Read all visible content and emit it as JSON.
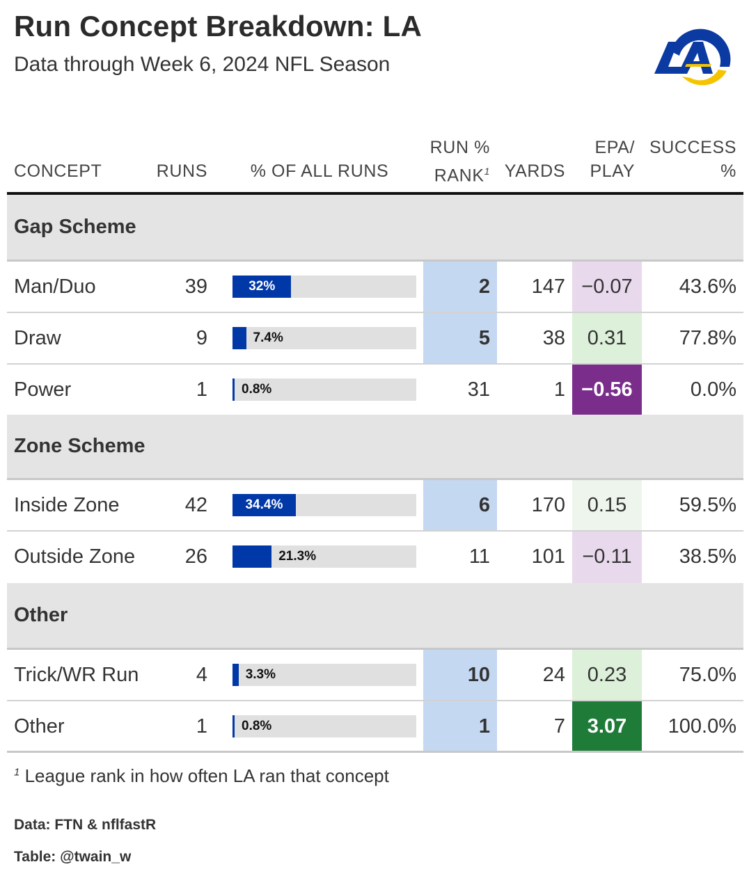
{
  "title": "Run Concept Breakdown: LA",
  "subtitle": "Data through Week 6, 2024 NFL Season",
  "logo": {
    "text": "LA",
    "colors": {
      "blue": "#0b3aa2",
      "gold": "#f5c400"
    }
  },
  "headers": {
    "concept": "CONCEPT",
    "runs": "RUNS",
    "pct": "% OF ALL RUNS",
    "rank_line1": "RUN %",
    "rank_line2": "RANK",
    "rank_note": "1",
    "yards": "YARDS",
    "epa_line1": "EPA/",
    "epa_line2": "PLAY",
    "success_line1": "SUCCESS",
    "success_line2": "%"
  },
  "colors": {
    "bar": "#0038a8",
    "track": "#e0e0e0",
    "rank_highlight": "#c5d8f1",
    "epa_neg_light": "#e8d9ec",
    "epa_neg_strong": "#7b2d8c",
    "epa_pos_light": "#dcf0da",
    "epa_pos_faint": "#eef5ec",
    "epa_pos_strong": "#1e7b38"
  },
  "chart_data": {
    "type": "table",
    "groups": [
      {
        "name": "Gap Scheme",
        "rows": [
          {
            "concept": "Man/Duo",
            "runs": "39",
            "pct": 32.0,
            "pct_label": "32%",
            "rank": "2",
            "rank_highlight": true,
            "yards": "147",
            "epa": "−0.07",
            "epa_bg": "#e8d9ec",
            "epa_color": "#333333",
            "epa_bold": false,
            "success": "43.6%"
          },
          {
            "concept": "Draw",
            "runs": "9",
            "pct": 7.4,
            "pct_label": "7.4%",
            "rank": "5",
            "rank_highlight": true,
            "yards": "38",
            "epa": "0.31",
            "epa_bg": "#dcf0da",
            "epa_color": "#333333",
            "epa_bold": false,
            "success": "77.8%"
          },
          {
            "concept": "Power",
            "runs": "1",
            "pct": 0.8,
            "pct_label": "0.8%",
            "rank": "31",
            "rank_highlight": false,
            "yards": "1",
            "epa": "−0.56",
            "epa_bg": "#7b2d8c",
            "epa_color": "#ffffff",
            "epa_bold": true,
            "success": "0.0%"
          }
        ]
      },
      {
        "name": "Zone Scheme",
        "rows": [
          {
            "concept": "Inside Zone",
            "runs": "42",
            "pct": 34.4,
            "pct_label": "34.4%",
            "rank": "6",
            "rank_highlight": true,
            "yards": "170",
            "epa": "0.15",
            "epa_bg": "#eef5ec",
            "epa_color": "#333333",
            "epa_bold": false,
            "success": "59.5%"
          },
          {
            "concept": "Outside Zone",
            "runs": "26",
            "pct": 21.3,
            "pct_label": "21.3%",
            "rank": "11",
            "rank_highlight": false,
            "yards": "101",
            "epa": "−0.11",
            "epa_bg": "#e8d9ec",
            "epa_color": "#333333",
            "epa_bold": false,
            "success": "38.5%"
          }
        ]
      },
      {
        "name": "Other",
        "rows": [
          {
            "concept": "Trick/WR Run",
            "runs": "4",
            "pct": 3.3,
            "pct_label": "3.3%",
            "rank": "10",
            "rank_highlight": true,
            "yards": "24",
            "epa": "0.23",
            "epa_bg": "#dcf0da",
            "epa_color": "#333333",
            "epa_bold": false,
            "success": "75.0%"
          },
          {
            "concept": "Other",
            "runs": "1",
            "pct": 0.8,
            "pct_label": "0.8%",
            "rank": "1",
            "rank_highlight": true,
            "yards": "7",
            "epa": "3.07",
            "epa_bg": "#1e7b38",
            "epa_color": "#ffffff",
            "epa_bold": true,
            "success": "100.0%"
          }
        ]
      }
    ],
    "bar_max_pct": 100
  },
  "footnote": {
    "marker": "1",
    "text": "League rank in how often LA ran that concept"
  },
  "source": "Data: FTN & nflfastR",
  "credit": "Table: @twain_w"
}
